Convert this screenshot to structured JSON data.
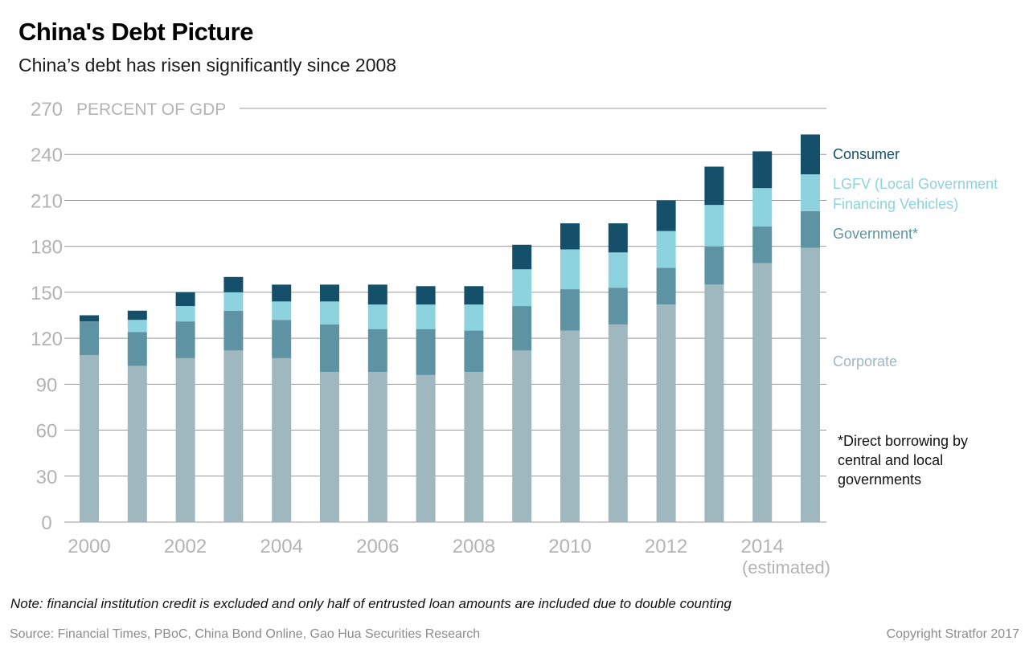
{
  "title": "China's Debt Picture",
  "subtitle": "China’s debt has risen significantly since 2008",
  "note": "Note: financial institution credit is excluded and only half of entrusted loan amounts are included due to double counting",
  "source": "Source: Financial Times, PBoC, China Bond Online, Gao Hua Securities Research",
  "copyright": "Copyright Stratfor 2017",
  "footnote": "*Direct borrowing by central and local governments",
  "colors": {
    "corporate": "#9fb7be",
    "government": "#5e93a3",
    "lgfv": "#8dd3df",
    "consumer": "#15506a",
    "grid": "#9a9a9a",
    "tick_text": "#b3b3b3"
  },
  "chart_data": {
    "type": "bar",
    "stacked": true,
    "ylabel": "PERCENT OF GDP",
    "ylim": [
      0,
      270
    ],
    "yticks": [
      0,
      30,
      60,
      90,
      120,
      150,
      180,
      210,
      240,
      270
    ],
    "x": [
      2000,
      2001,
      2002,
      2003,
      2004,
      2005,
      2006,
      2007,
      2008,
      2009,
      2010,
      2011,
      2012,
      2013,
      2014,
      2015
    ],
    "xtick_labels": [
      {
        "x": 2000,
        "label": "2000"
      },
      {
        "x": 2002,
        "label": "2002"
      },
      {
        "x": 2004,
        "label": "2004"
      },
      {
        "x": 2006,
        "label": "2006"
      },
      {
        "x": 2008,
        "label": "2008"
      },
      {
        "x": 2010,
        "label": "2010"
      },
      {
        "x": 2012,
        "label": "2012"
      },
      {
        "x": 2014,
        "label": "2014"
      }
    ],
    "estimated_label": "(estimated)",
    "grid": true,
    "legend": "right",
    "series": [
      {
        "name": "Corporate",
        "color_key": "corporate",
        "values": [
          109,
          102,
          107,
          112,
          107,
          98,
          98,
          96,
          98,
          112,
          125,
          129,
          142,
          155,
          169,
          179
        ]
      },
      {
        "name": "Government*",
        "color_key": "government",
        "values": [
          22,
          22,
          24,
          26,
          25,
          31,
          28,
          30,
          27,
          29,
          27,
          24,
          24,
          25,
          24,
          24
        ]
      },
      {
        "name": "LGFV (Local Government Financing Vehicles)",
        "color_key": "lgfv",
        "values": [
          0,
          8,
          10,
          12,
          12,
          15,
          16,
          16,
          17,
          24,
          26,
          23,
          24,
          27,
          25,
          24
        ]
      },
      {
        "name": "Consumer",
        "color_key": "consumer",
        "values": [
          4,
          6,
          9,
          10,
          11,
          11,
          13,
          12,
          12,
          16,
          17,
          19,
          20,
          25,
          24,
          26
        ]
      }
    ],
    "legend_entries": [
      {
        "lines": [
          "Consumer"
        ],
        "color_key": "consumer"
      },
      {
        "lines": [
          "LGFV (Local Government",
          "Financing Vehicles)"
        ],
        "color_key": "lgfv"
      },
      {
        "lines": [
          "Government*"
        ],
        "color_key": "government"
      },
      {
        "lines": [
          "Corporate"
        ],
        "color_key": "corporate"
      }
    ]
  }
}
